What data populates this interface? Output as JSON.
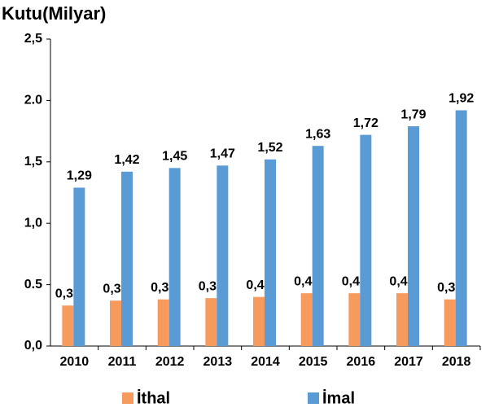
{
  "chart_data": {
    "type": "bar",
    "title": "Kutu(Milyar)",
    "categories": [
      "2010",
      "2011",
      "2012",
      "2013",
      "2014",
      "2015",
      "2016",
      "2017",
      "2018"
    ],
    "series": [
      {
        "name": "İthal",
        "color": "#f79a5e",
        "values": [
          0.33,
          0.37,
          0.38,
          0.39,
          0.4,
          0.43,
          0.43,
          0.43,
          0.38
        ],
        "value_labels": [
          "0,33",
          "0,37",
          "0,38",
          "0,39",
          "0,40",
          "0,43",
          "0,43",
          "0,43",
          "0,38"
        ]
      },
      {
        "name": "İmal",
        "color": "#5b9bd5",
        "values": [
          1.29,
          1.42,
          1.45,
          1.47,
          1.52,
          1.63,
          1.72,
          1.79,
          1.92
        ],
        "value_labels": [
          "1,29",
          "1,42",
          "1,45",
          "1,47",
          "1,52",
          "1,63",
          "1,72",
          "1,79",
          "1,92"
        ]
      }
    ],
    "ylim": [
      0,
      2.5
    ],
    "yticks": [
      {
        "value": 0,
        "label": "0,0"
      },
      {
        "value": 0.5,
        "label": "0.5"
      },
      {
        "value": 1,
        "label": "1,0"
      },
      {
        "value": 1.5,
        "label": "1,5"
      },
      {
        "value": 2,
        "label": "2.0"
      },
      {
        "value": 2.5,
        "label": "2,5"
      }
    ],
    "legend": "bottom"
  }
}
